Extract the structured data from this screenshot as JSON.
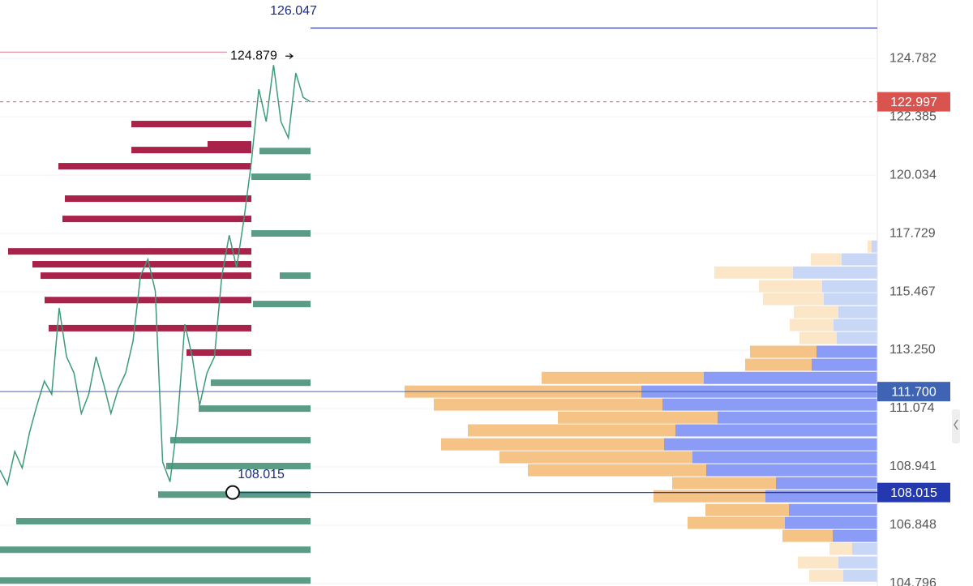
{
  "chart_data": {
    "type": "orderflow",
    "log_scale": true,
    "ylim": [
      104.71,
      127.23
    ],
    "yticks": [
      124.782,
      122.385,
      120.034,
      117.729,
      115.467,
      {
        "value": 113.25,
        "label": "113.250"
      },
      111.074,
      108.941,
      106.848,
      104.796
    ],
    "price_line": {
      "color": "#3d9b78",
      "values": [
        108.82,
        108.3,
        109.5,
        108.9,
        110.2,
        111.2,
        112.09,
        111.6,
        114.85,
        113.0,
        112.4,
        110.89,
        111.6,
        113.0,
        112.0,
        110.89,
        111.8,
        112.4,
        113.6,
        116.09,
        116.72,
        115.5,
        109.11,
        108.4,
        110.59,
        114.23,
        113.0,
        111.19,
        112.4,
        113.0,
        116.09,
        117.66,
        116.4,
        118.3,
        120.55,
        123.51,
        122.19,
        124.51,
        122.19,
        121.53,
        124.18,
        123.18,
        122.997
      ]
    },
    "liquidity": {
      "ask_color": "#a8224a",
      "bid_color": "#5b9c86",
      "asks": {
        "prices": [
          122.09,
          121.27,
          121.04,
          120.39,
          119.1,
          118.3,
          117.03,
          116.53,
          116.09,
          115.15,
          114.08,
          113.16
        ],
        "sizes": [
          148,
          54,
          148,
          238,
          230,
          233,
          300,
          270,
          260,
          255,
          250,
          80
        ]
      },
      "bids": {
        "prices": [
          121.0,
          119.97,
          117.73,
          116.09,
          115.0,
          112.03,
          111.07,
          109.91,
          108.97,
          107.94,
          106.99,
          105.98,
          104.9
        ],
        "sizes": [
          63,
          73,
          73,
          38,
          71,
          123,
          138,
          173,
          178,
          188,
          363,
          383,
          383
        ]
      }
    },
    "volume_profile": {
      "prices": [
        117.22,
        116.72,
        116.21,
        115.68,
        115.19,
        114.69,
        114.2,
        113.71,
        113.19,
        112.7,
        112.21,
        111.7,
        111.22,
        110.74,
        110.27,
        109.76,
        109.29,
        108.82,
        108.35,
        107.88,
        107.39,
        106.93,
        106.47,
        106.01,
        105.53,
        105.07
      ],
      "value_area": [
        106.2,
        113.5
      ],
      "series": [
        {
          "color": "#f5c386",
          "faded_color": "#fbe6c8",
          "values": [
            5,
            38,
            97,
            78,
            75,
            55,
            54,
            46,
            82,
            82,
            200,
            292,
            282,
            197,
            256,
            275,
            238,
            220,
            128,
            138,
            103,
            120,
            62,
            28,
            50,
            42
          ]
        },
        {
          "color": "#8a9cf5",
          "faded_color": "#c9d7f7",
          "values": [
            7,
            44,
            104,
            68,
            66,
            48,
            54,
            50,
            75,
            81,
            214,
            291,
            265,
            197,
            249,
            263,
            228,
            211,
            125,
            138,
            109,
            114,
            55,
            31,
            48,
            42
          ]
        }
      ]
    },
    "price_badges": [
      {
        "value": 122.997,
        "color": "#d9534f",
        "line": "dashed"
      },
      {
        "value": 111.7,
        "label": "111.700",
        "color": "#3f64b4",
        "line": "solid"
      },
      {
        "value": 108.015,
        "color": "#2438b0"
      }
    ],
    "annotations": [
      {
        "value": 126.047,
        "style": "ray",
        "color": "#1a2a8a"
      },
      {
        "value": 124.879,
        "style": "arrow",
        "color": "#e07a8a"
      },
      {
        "value": 108.015,
        "style": "point",
        "color": "#1a2a8a"
      }
    ]
  }
}
